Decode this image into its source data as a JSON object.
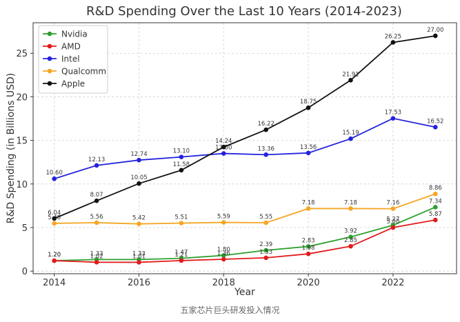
{
  "caption": "五家芯片巨头研发投入情况",
  "chart_data": {
    "type": "line",
    "title": "R&D Spending Over the Last 10 Years (2014-2023)",
    "xlabel": "Year",
    "ylabel": "R&D Spending (in Billions USD)",
    "x": [
      2014,
      2015,
      2016,
      2017,
      2018,
      2019,
      2020,
      2021,
      2022,
      2023
    ],
    "xlim": [
      2013.5,
      2023.5
    ],
    "ylim": [
      -0.3,
      28.5
    ],
    "xticks": [
      2014,
      2016,
      2018,
      2020,
      2022
    ],
    "yticks": [
      0,
      5,
      10,
      15,
      20,
      25
    ],
    "grid": true,
    "legend_position": "upper-left",
    "series": [
      {
        "name": "Nvidia",
        "color": "#2ca02c",
        "values": [
          1.2,
          1.33,
          1.33,
          1.47,
          1.8,
          2.39,
          2.83,
          3.92,
          5.27,
          7.34
        ],
        "labels": [
          "1.20",
          "1.33",
          "1.33",
          "1.47",
          "1.80",
          "2.39",
          "2.83",
          "3.92",
          "5.27",
          "7.34"
        ]
      },
      {
        "name": "AMD",
        "color": "#e31a1c",
        "values": [
          1.2,
          1.02,
          1.01,
          1.21,
          1.36,
          1.53,
          1.98,
          2.85,
          5.0,
          5.87
        ],
        "labels": [
          "1.20",
          "1.02",
          "1.01",
          "1.21",
          "1.36",
          "1.53",
          "1.98",
          "2.85",
          "5.00",
          "5.87"
        ]
      },
      {
        "name": "Intel",
        "color": "#2222dd",
        "values": [
          10.6,
          12.13,
          12.74,
          13.1,
          13.5,
          13.36,
          13.56,
          15.19,
          17.53,
          16.52
        ],
        "labels": [
          "10.60",
          "12.13",
          "12.74",
          "13.10",
          "13.50",
          "13.36",
          "13.56",
          "15.19",
          "17.53",
          "16.52"
        ]
      },
      {
        "name": "Qualcomm",
        "color": "#f5a623",
        "values": [
          5.48,
          5.56,
          5.42,
          5.51,
          5.59,
          5.55,
          7.18,
          7.18,
          7.16,
          8.86
        ],
        "labels": [
          "5.48",
          "5.56",
          "5.42",
          "5.51",
          "5.59",
          "5.55",
          "7.18",
          "7.18",
          "7.16",
          "8.86"
        ]
      },
      {
        "name": "Apple",
        "color": "#111111",
        "values": [
          6.04,
          8.07,
          10.05,
          11.58,
          14.24,
          16.22,
          18.75,
          21.91,
          26.25,
          27.0
        ],
        "labels": [
          "6.04",
          "8.07",
          "10.05",
          "11.58",
          "14.24",
          "16.22",
          "18.75",
          "21.91",
          "26.25",
          "27.00"
        ]
      }
    ]
  }
}
